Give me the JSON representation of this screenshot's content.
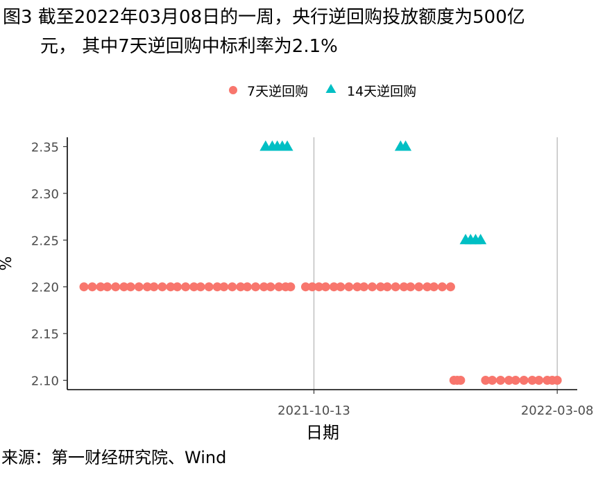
{
  "figure": {
    "title_line1": "图3  截至2022年03月08日的一周，央行逆回购投放额度为500亿",
    "title_line2": "元，  其中7天逆回购中标利率为2.1%",
    "source": "来源：第一财经研究院、Wind"
  },
  "chart_data": {
    "type": "scatter",
    "xlabel": "日期",
    "ylabel": "%",
    "x_axis_type": "date",
    "xlim": [
      "2021-05-18",
      "2022-03-20"
    ],
    "ylim": [
      2.09,
      2.36
    ],
    "x_ticks": [
      "2021-10-13",
      "2022-03-08"
    ],
    "y_ticks": [
      2.1,
      2.15,
      2.2,
      2.25,
      2.3,
      2.35
    ],
    "y_tick_labels": [
      "2.10",
      "2.15",
      "2.20",
      "2.25",
      "2.30",
      "2.35"
    ],
    "vertical_grid": true,
    "horizontal_grid": false,
    "legend_position": "top",
    "series": [
      {
        "name": "7天逆回购",
        "marker": "circle",
        "color": "#F8766D",
        "points": [
          {
            "x": "2021-05-28",
            "y": 2.2
          },
          {
            "x": "2021-06-02",
            "y": 2.2
          },
          {
            "x": "2021-06-07",
            "y": 2.2
          },
          {
            "x": "2021-06-11",
            "y": 2.2
          },
          {
            "x": "2021-06-16",
            "y": 2.2
          },
          {
            "x": "2021-06-21",
            "y": 2.2
          },
          {
            "x": "2021-06-25",
            "y": 2.2
          },
          {
            "x": "2021-06-30",
            "y": 2.2
          },
          {
            "x": "2021-07-05",
            "y": 2.2
          },
          {
            "x": "2021-07-09",
            "y": 2.2
          },
          {
            "x": "2021-07-14",
            "y": 2.2
          },
          {
            "x": "2021-07-19",
            "y": 2.2
          },
          {
            "x": "2021-07-23",
            "y": 2.2
          },
          {
            "x": "2021-07-28",
            "y": 2.2
          },
          {
            "x": "2021-08-02",
            "y": 2.2
          },
          {
            "x": "2021-08-06",
            "y": 2.2
          },
          {
            "x": "2021-08-11",
            "y": 2.2
          },
          {
            "x": "2021-08-16",
            "y": 2.2
          },
          {
            "x": "2021-08-20",
            "y": 2.2
          },
          {
            "x": "2021-08-25",
            "y": 2.2
          },
          {
            "x": "2021-08-30",
            "y": 2.2
          },
          {
            "x": "2021-09-03",
            "y": 2.2
          },
          {
            "x": "2021-09-08",
            "y": 2.2
          },
          {
            "x": "2021-09-13",
            "y": 2.2
          },
          {
            "x": "2021-09-17",
            "y": 2.2
          },
          {
            "x": "2021-09-22",
            "y": 2.2
          },
          {
            "x": "2021-09-26",
            "y": 2.2
          },
          {
            "x": "2021-09-29",
            "y": 2.2
          },
          {
            "x": "2021-10-08",
            "y": 2.2
          },
          {
            "x": "2021-10-12",
            "y": 2.2
          },
          {
            "x": "2021-10-16",
            "y": 2.2
          },
          {
            "x": "2021-10-20",
            "y": 2.2
          },
          {
            "x": "2021-10-25",
            "y": 2.2
          },
          {
            "x": "2021-10-29",
            "y": 2.2
          },
          {
            "x": "2021-11-03",
            "y": 2.2
          },
          {
            "x": "2021-11-08",
            "y": 2.2
          },
          {
            "x": "2021-11-12",
            "y": 2.2
          },
          {
            "x": "2021-11-17",
            "y": 2.2
          },
          {
            "x": "2021-11-22",
            "y": 2.2
          },
          {
            "x": "2021-11-26",
            "y": 2.2
          },
          {
            "x": "2021-12-01",
            "y": 2.2
          },
          {
            "x": "2021-12-06",
            "y": 2.2
          },
          {
            "x": "2021-12-10",
            "y": 2.2
          },
          {
            "x": "2021-12-15",
            "y": 2.2
          },
          {
            "x": "2021-12-20",
            "y": 2.2
          },
          {
            "x": "2021-12-24",
            "y": 2.2
          },
          {
            "x": "2021-12-29",
            "y": 2.2
          },
          {
            "x": "2022-01-03",
            "y": 2.2
          },
          {
            "x": "2022-01-05",
            "y": 2.1
          },
          {
            "x": "2022-01-07",
            "y": 2.1
          },
          {
            "x": "2022-01-09",
            "y": 2.1
          },
          {
            "x": "2022-01-24",
            "y": 2.1
          },
          {
            "x": "2022-01-28",
            "y": 2.1
          },
          {
            "x": "2022-02-02",
            "y": 2.1
          },
          {
            "x": "2022-02-07",
            "y": 2.1
          },
          {
            "x": "2022-02-11",
            "y": 2.1
          },
          {
            "x": "2022-02-16",
            "y": 2.1
          },
          {
            "x": "2022-02-21",
            "y": 2.1
          },
          {
            "x": "2022-02-25",
            "y": 2.1
          },
          {
            "x": "2022-03-02",
            "y": 2.1
          },
          {
            "x": "2022-03-05",
            "y": 2.1
          },
          {
            "x": "2022-03-08",
            "y": 2.1
          }
        ]
      },
      {
        "name": "14天逆回购",
        "marker": "triangle",
        "color": "#00BFC4",
        "points": [
          {
            "x": "2021-09-14",
            "y": 2.35
          },
          {
            "x": "2021-09-18",
            "y": 2.35
          },
          {
            "x": "2021-09-21",
            "y": 2.35
          },
          {
            "x": "2021-09-24",
            "y": 2.35
          },
          {
            "x": "2021-09-27",
            "y": 2.35
          },
          {
            "x": "2021-12-04",
            "y": 2.35
          },
          {
            "x": "2021-12-07",
            "y": 2.35
          },
          {
            "x": "2022-01-12",
            "y": 2.25
          },
          {
            "x": "2022-01-15",
            "y": 2.25
          },
          {
            "x": "2022-01-18",
            "y": 2.25
          },
          {
            "x": "2022-01-21",
            "y": 2.25
          }
        ]
      }
    ]
  }
}
